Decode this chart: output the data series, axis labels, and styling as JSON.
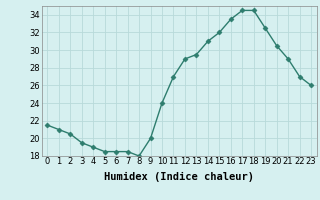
{
  "x": [
    0,
    1,
    2,
    3,
    4,
    5,
    6,
    7,
    8,
    9,
    10,
    11,
    12,
    13,
    14,
    15,
    16,
    17,
    18,
    19,
    20,
    21,
    22,
    23
  ],
  "y": [
    21.5,
    21.0,
    20.5,
    19.5,
    19.0,
    18.5,
    18.5,
    18.5,
    18.0,
    20.0,
    24.0,
    27.0,
    29.0,
    29.5,
    31.0,
    32.0,
    33.5,
    34.5,
    34.5,
    32.5,
    30.5,
    29.0,
    27.0,
    26.0
  ],
  "line_color": "#2e7d6e",
  "marker": "D",
  "marker_size": 2.5,
  "bg_color": "#d6f0f0",
  "grid_color": "#b8dada",
  "xlabel": "Humidex (Indice chaleur)",
  "xlabel_fontsize": 7.5,
  "xlabel_fontweight": "bold",
  "ylim": [
    18,
    35
  ],
  "yticks": [
    18,
    20,
    22,
    24,
    26,
    28,
    30,
    32,
    34
  ],
  "xticks": [
    0,
    1,
    2,
    3,
    4,
    5,
    6,
    7,
    8,
    9,
    10,
    11,
    12,
    13,
    14,
    15,
    16,
    17,
    18,
    19,
    20,
    21,
    22,
    23
  ],
  "tick_fontsize": 6,
  "line_width": 1.0
}
